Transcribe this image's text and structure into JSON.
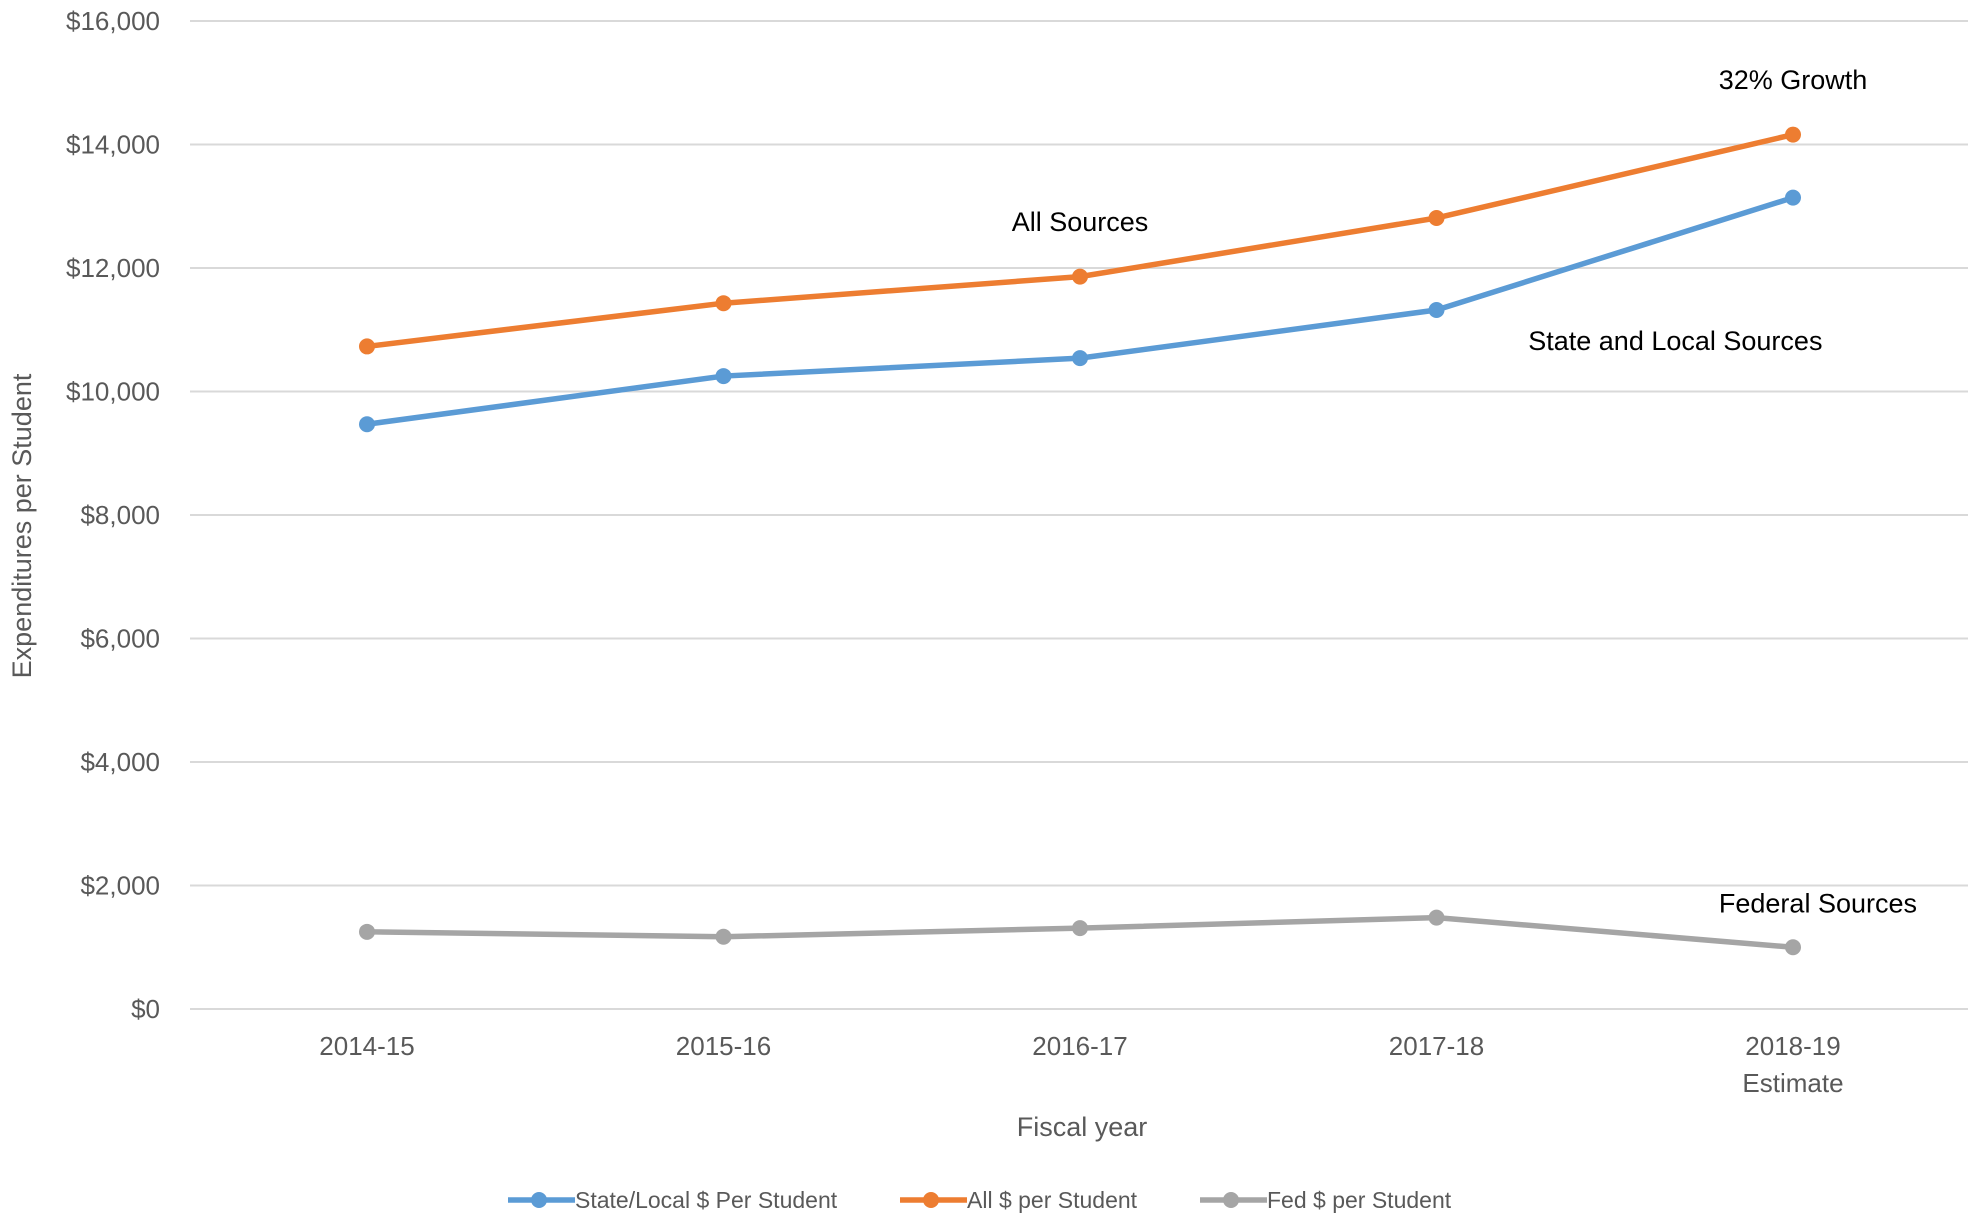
{
  "chart_data": {
    "type": "line",
    "title": "",
    "xlabel": "Fiscal year",
    "ylabel": "Expenditures per Student",
    "categories": [
      [
        "2014-15"
      ],
      [
        "2015-16"
      ],
      [
        "2016-17"
      ],
      [
        "2017-18"
      ],
      [
        "2018-19",
        "Estimate"
      ]
    ],
    "ylim": [
      0,
      16000
    ],
    "y_ticks": [
      0,
      2000,
      4000,
      6000,
      8000,
      10000,
      12000,
      14000,
      16000
    ],
    "y_tick_labels": [
      "$0",
      "$2,000",
      "$4,000",
      "$6,000",
      "$8,000",
      "$10,000",
      "$12,000",
      "$14,000",
      "$16,000"
    ],
    "grid": true,
    "legend_position": "bottom",
    "series": [
      {
        "name": "State/Local $ Per Student",
        "color": "#5B9BD5",
        "values": [
          9470,
          10250,
          10540,
          11320,
          13140
        ]
      },
      {
        "name": "All $ per Student",
        "color": "#ED7D31",
        "values": [
          10730,
          11430,
          11860,
          12810,
          14160
        ]
      },
      {
        "name": "Fed $ per Student",
        "color": "#A5A5A5",
        "values": [
          1250,
          1170,
          1310,
          1480,
          1000
        ]
      }
    ],
    "annotations": [
      {
        "text": "32% Growth",
        "anchor_category": 4,
        "anchor_value": 14900
      },
      {
        "text": "All Sources",
        "anchor_category": 2,
        "anchor_value": 12600
      },
      {
        "text": "State and Local Sources",
        "anchor_category": 3.67,
        "anchor_value": 10670
      },
      {
        "text": "Federal Sources",
        "anchor_category": 4.07,
        "anchor_value": 1560
      }
    ]
  }
}
